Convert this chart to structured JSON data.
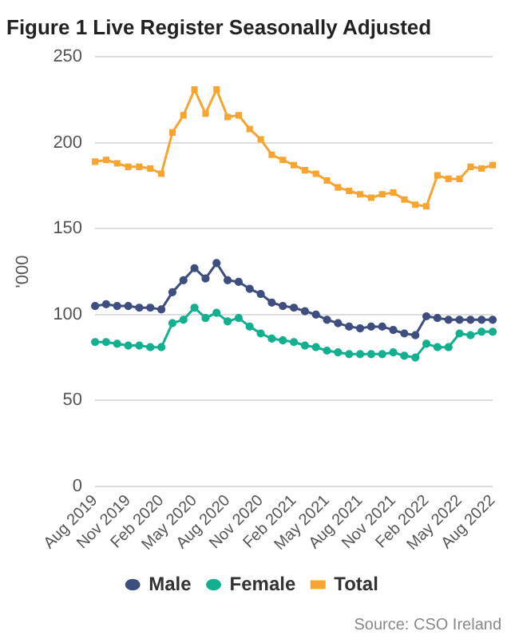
{
  "chart_data": {
    "type": "line",
    "title": "Figure 1 Live Register Seasonally Adjusted",
    "ylabel": "'000",
    "categories": [
      "Aug 2019",
      null,
      null,
      "Nov 2019",
      null,
      null,
      "Feb 2020",
      null,
      null,
      "May 2020",
      null,
      null,
      "Aug 2020",
      null,
      null,
      "Nov 2020",
      null,
      null,
      "Feb 2021",
      null,
      null,
      "May 2021",
      null,
      null,
      "Aug 2021",
      null,
      null,
      "Nov 2021",
      null,
      null,
      "Feb 2022",
      null,
      null,
      "May 2022",
      null,
      null,
      "Aug 2022"
    ],
    "series": [
      {
        "name": "Male",
        "color": "#3d4e7f",
        "values": [
          105,
          106,
          105,
          105,
          104,
          104,
          103,
          113,
          120,
          127,
          121,
          130,
          120,
          119,
          115,
          112,
          107,
          105,
          104,
          102,
          100,
          97,
          95,
          93,
          92,
          93,
          93,
          91,
          89,
          88,
          99,
          98,
          97,
          97,
          97,
          97,
          97
        ]
      },
      {
        "name": "Female",
        "color": "#12b08f",
        "values": [
          84,
          84,
          83,
          82,
          82,
          81,
          81,
          95,
          97,
          104,
          98,
          101,
          96,
          98,
          93,
          89,
          86,
          85,
          84,
          82,
          81,
          79,
          78,
          77,
          77,
          77,
          77,
          78,
          76,
          75,
          83,
          81,
          81,
          89,
          88,
          90,
          90
        ]
      },
      {
        "name": "Total",
        "color": "#f7a531",
        "marker": "square",
        "values": [
          189,
          190,
          188,
          186,
          186,
          185,
          182,
          206,
          216,
          231,
          217,
          231,
          215,
          216,
          208,
          202,
          193,
          190,
          187,
          184,
          182,
          178,
          174,
          172,
          170,
          168,
          170,
          171,
          167,
          164,
          163,
          181,
          179,
          179,
          186,
          185,
          187
        ]
      }
    ],
    "ylim": [
      0,
      250
    ],
    "yticks": [
      0,
      50,
      100,
      150,
      200,
      250
    ],
    "grid": "y",
    "legend": "bottom",
    "marker": "circle",
    "line_style": "solid",
    "annotations": [
      "Source: CSO Ireland"
    ]
  }
}
